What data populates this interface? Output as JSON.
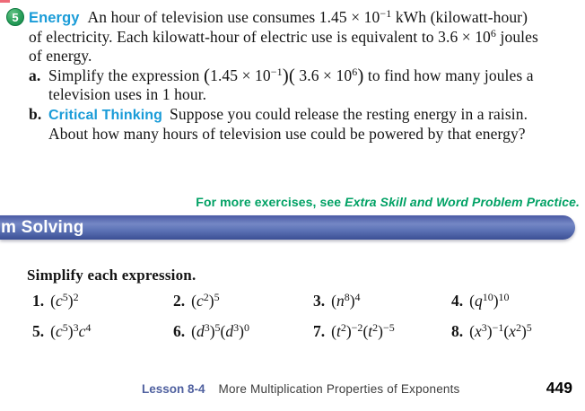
{
  "problem": {
    "number": "5",
    "topic_label": "Energy",
    "line1_text": "An hour of television use consumes 1.45 × 10",
    "line1_sup": "−1",
    "line1_rest": " kWh (kilowatt-hour)",
    "line2_text": "of electricity. Each kilowatt-hour of electric use is equivalent to 3.6 × 10",
    "line2_sup": "6",
    "line2_rest": " joules",
    "line3_text": "of energy.",
    "part_a": {
      "marker": "a.",
      "intro": "Simplify the expression ",
      "open1": "(",
      "base1": "1.45 × 10",
      "sup1": "−1",
      "close1": ")",
      "open2": "(",
      "base2": " 3.6 × 10",
      "sup2": "6",
      "close2": ")",
      "outro": " to find how many joules a",
      "cont_line": "television uses in 1 hour."
    },
    "part_b": {
      "marker": "b.",
      "label": "Critical Thinking",
      "text": "Suppose you could release the resting energy in a raisin.",
      "cont_line": "About how many hours of television use could be powered by that energy?"
    }
  },
  "note": {
    "prefix": "For more exercises, see ",
    "reference": "Extra Skill and Word Problem Practice."
  },
  "banner": {
    "visible_text": "m Solving"
  },
  "exercises": {
    "instruction": "Simplify each expression.",
    "items": [
      {
        "num": "1.",
        "tokens": [
          {
            "k": "t",
            "v": "("
          },
          {
            "k": "i",
            "v": "c"
          },
          {
            "k": "s",
            "v": "5"
          },
          {
            "k": "t",
            "v": ")"
          },
          {
            "k": "s",
            "v": "2"
          }
        ]
      },
      {
        "num": "2.",
        "tokens": [
          {
            "k": "t",
            "v": "("
          },
          {
            "k": "i",
            "v": "c"
          },
          {
            "k": "s",
            "v": "2"
          },
          {
            "k": "t",
            "v": ")"
          },
          {
            "k": "s",
            "v": "5"
          }
        ]
      },
      {
        "num": "3.",
        "tokens": [
          {
            "k": "t",
            "v": "("
          },
          {
            "k": "i",
            "v": "n"
          },
          {
            "k": "s",
            "v": "8"
          },
          {
            "k": "t",
            "v": ")"
          },
          {
            "k": "s",
            "v": "4"
          }
        ]
      },
      {
        "num": "4.",
        "tokens": [
          {
            "k": "t",
            "v": "("
          },
          {
            "k": "i",
            "v": "q"
          },
          {
            "k": "s",
            "v": "10"
          },
          {
            "k": "t",
            "v": ")"
          },
          {
            "k": "s",
            "v": "10"
          }
        ]
      },
      {
        "num": "5.",
        "tokens": [
          {
            "k": "t",
            "v": "("
          },
          {
            "k": "i",
            "v": "c"
          },
          {
            "k": "s",
            "v": "5"
          },
          {
            "k": "t",
            "v": ")"
          },
          {
            "k": "s",
            "v": "3"
          },
          {
            "k": "i",
            "v": "c"
          },
          {
            "k": "s",
            "v": "4"
          }
        ]
      },
      {
        "num": "6.",
        "tokens": [
          {
            "k": "t",
            "v": "("
          },
          {
            "k": "i",
            "v": "d"
          },
          {
            "k": "s",
            "v": "3"
          },
          {
            "k": "t",
            "v": ")"
          },
          {
            "k": "s",
            "v": "5"
          },
          {
            "k": "t",
            "v": "("
          },
          {
            "k": "i",
            "v": "d"
          },
          {
            "k": "s",
            "v": "3"
          },
          {
            "k": "t",
            "v": ")"
          },
          {
            "k": "s",
            "v": "0"
          }
        ]
      },
      {
        "num": "7.",
        "tokens": [
          {
            "k": "t",
            "v": "("
          },
          {
            "k": "i",
            "v": "t"
          },
          {
            "k": "s",
            "v": "2"
          },
          {
            "k": "t",
            "v": ")"
          },
          {
            "k": "s",
            "v": "−2"
          },
          {
            "k": "t",
            "v": "("
          },
          {
            "k": "i",
            "v": "t"
          },
          {
            "k": "s",
            "v": "2"
          },
          {
            "k": "t",
            "v": ")"
          },
          {
            "k": "s",
            "v": "−5"
          }
        ]
      },
      {
        "num": "8.",
        "tokens": [
          {
            "k": "t",
            "v": "("
          },
          {
            "k": "i",
            "v": "x"
          },
          {
            "k": "s",
            "v": "3"
          },
          {
            "k": "t",
            "v": ")"
          },
          {
            "k": "s",
            "v": "−1"
          },
          {
            "k": "t",
            "v": "("
          },
          {
            "k": "i",
            "v": "x"
          },
          {
            "k": "s",
            "v": "2"
          },
          {
            "k": "t",
            "v": ")"
          },
          {
            "k": "s",
            "v": "5"
          }
        ]
      }
    ]
  },
  "footer": {
    "lesson_label": "Lesson 8-4",
    "lesson_title": "More Multiplication Properties of Exponents",
    "page_number": "449"
  },
  "colors": {
    "topic_cyan": "#1a9cd8",
    "note_green": "#00a164",
    "banner_blue": "#5e74b7",
    "badge_green": "#2aa05b",
    "lesson_blue": "#4f609f"
  }
}
